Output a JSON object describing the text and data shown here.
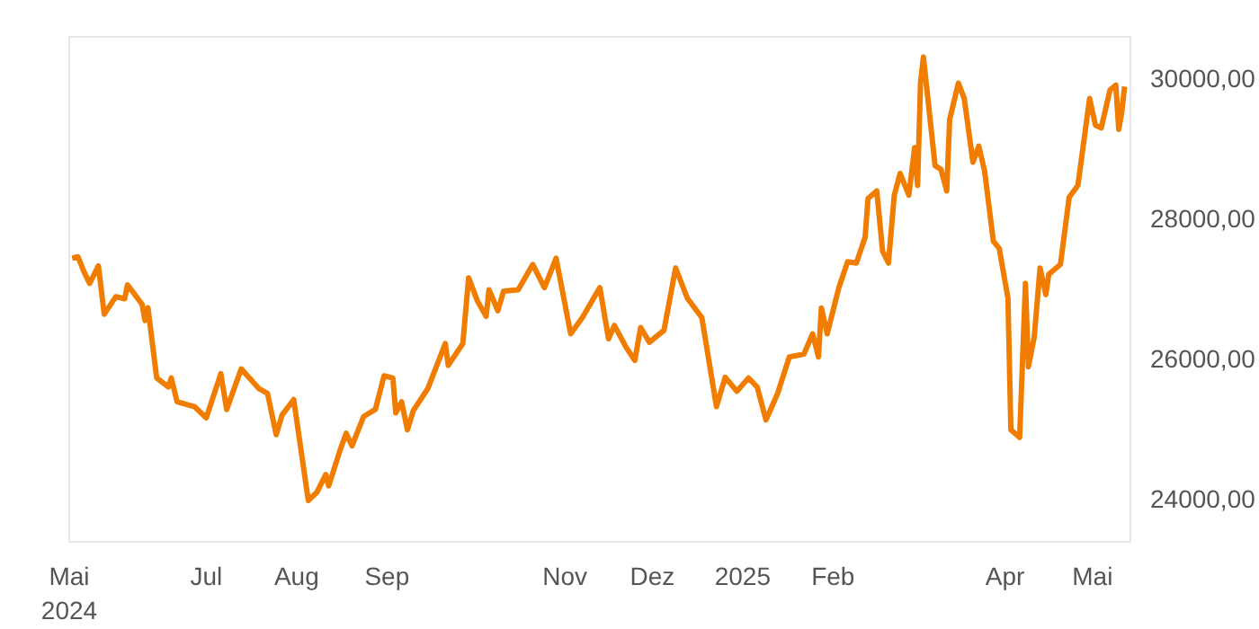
{
  "chart_data": {
    "type": "line",
    "x": [
      "2024-05-16",
      "2024-05-18",
      "2024-05-20",
      "2024-05-22",
      "2024-05-25",
      "2024-05-27",
      "2024-05-31",
      "2024-06-03",
      "2024-06-04",
      "2024-06-09",
      "2024-06-10",
      "2024-06-11",
      "2024-06-14",
      "2024-06-18",
      "2024-06-19",
      "2024-06-21",
      "2024-06-27",
      "2024-07-01",
      "2024-07-06",
      "2024-07-08",
      "2024-07-13",
      "2024-07-19",
      "2024-07-22",
      "2024-07-25",
      "2024-07-27",
      "2024-07-31",
      "2024-08-05",
      "2024-08-08",
      "2024-08-11",
      "2024-08-12",
      "2024-08-16",
      "2024-08-18",
      "2024-08-20",
      "2024-08-24",
      "2024-08-28",
      "2024-08-31",
      "2024-09-03",
      "2024-09-04",
      "2024-09-06",
      "2024-09-08",
      "2024-09-10",
      "2024-09-15",
      "2024-09-21",
      "2024-09-22",
      "2024-09-27",
      "2024-09-29",
      "2024-10-02",
      "2024-10-05",
      "2024-10-06",
      "2024-10-09",
      "2024-10-11",
      "2024-10-16",
      "2024-10-21",
      "2024-10-25",
      "2024-10-29",
      "2024-11-03",
      "2024-11-07",
      "2024-11-13",
      "2024-11-16",
      "2024-11-18",
      "2024-11-22",
      "2024-11-25",
      "2024-11-27",
      "2024-11-30",
      "2024-12-05",
      "2024-12-09",
      "2024-12-13",
      "2024-12-18",
      "2024-12-23",
      "2024-12-26",
      "2024-12-30",
      "2025-01-03",
      "2025-01-06",
      "2025-01-09",
      "2025-01-13",
      "2025-01-17",
      "2025-01-22",
      "2025-01-25",
      "2025-01-27",
      "2025-01-28",
      "2025-01-30",
      "2025-02-03",
      "2025-02-06",
      "2025-02-09",
      "2025-02-12",
      "2025-02-13",
      "2025-02-16",
      "2025-02-18",
      "2025-02-20",
      "2025-02-22",
      "2025-02-24",
      "2025-02-27",
      "2025-03-01",
      "2025-03-02",
      "2025-03-03",
      "2025-03-04",
      "2025-03-08",
      "2025-03-10",
      "2025-03-12",
      "2025-03-13",
      "2025-03-16",
      "2025-03-18",
      "2025-03-21",
      "2025-03-23",
      "2025-03-25",
      "2025-03-28",
      "2025-03-30",
      "2025-04-02",
      "2025-04-03",
      "2025-04-06",
      "2025-04-08",
      "2025-04-09",
      "2025-04-11",
      "2025-04-13",
      "2025-04-15",
      "2025-04-16",
      "2025-04-20",
      "2025-04-23",
      "2025-04-26",
      "2025-04-30",
      "2025-05-02",
      "2025-05-04",
      "2025-05-07",
      "2025-05-09",
      "2025-05-10",
      "2025-05-11",
      "2025-05-12"
    ],
    "series": [
      {
        "color": "#f07d00",
        "values": [
          27430,
          27450,
          27240,
          27070,
          27320,
          26630,
          26880,
          26850,
          27050,
          26770,
          26540,
          26720,
          25720,
          25590,
          25720,
          25380,
          25310,
          25150,
          25780,
          25270,
          25850,
          25570,
          25500,
          24910,
          25190,
          25410,
          23970,
          24090,
          24340,
          24180,
          24700,
          24930,
          24750,
          25170,
          25270,
          25750,
          25720,
          25220,
          25380,
          24980,
          25250,
          25570,
          26210,
          25900,
          26210,
          27150,
          26820,
          26600,
          26980,
          26680,
          26960,
          26980,
          27340,
          27010,
          27430,
          26350,
          26580,
          27010,
          26280,
          26470,
          26160,
          25970,
          26440,
          26230,
          26400,
          27290,
          26860,
          26580,
          25310,
          25730,
          25530,
          25720,
          25590,
          25120,
          25500,
          26020,
          26060,
          26350,
          26020,
          26720,
          26350,
          27010,
          27380,
          27360,
          27730,
          28280,
          28390,
          27530,
          27360,
          28330,
          28640,
          28330,
          29010,
          28470,
          29930,
          30300,
          28750,
          28700,
          28390,
          29410,
          29930,
          29710,
          28800,
          29030,
          28670,
          27670,
          27570,
          26860,
          24980,
          24870,
          27070,
          25880,
          26300,
          27290,
          26910,
          27200,
          27340,
          28300,
          28470,
          29710,
          29330,
          29290,
          29830,
          29900,
          29270,
          29500,
          29880
        ]
      }
    ],
    "xlim": [
      "2024-05-15",
      "2025-05-14"
    ],
    "xticks": [
      {
        "value": "2024-05-15",
        "label": "Mai\n2024"
      },
      {
        "value": "2024-07-01",
        "label": "Jul"
      },
      {
        "value": "2024-08-01",
        "label": "Aug"
      },
      {
        "value": "2024-09-01",
        "label": "Sep"
      },
      {
        "value": "2024-11-01",
        "label": "Nov"
      },
      {
        "value": "2024-12-01",
        "label": "Dez"
      },
      {
        "value": "2025-01-01",
        "label": "2025"
      },
      {
        "value": "2025-02-01",
        "label": "Feb"
      },
      {
        "value": "2025-04-01",
        "label": "Apr"
      },
      {
        "value": "2025-05-01",
        "label": "Mai"
      }
    ],
    "ylim": [
      23380,
      30590
    ],
    "yticks": [
      {
        "value": 24000,
        "label": "24000,00"
      },
      {
        "value": 26000,
        "label": "26000,00"
      },
      {
        "value": 28000,
        "label": "28000,00"
      },
      {
        "value": 30000,
        "label": "30000,00"
      }
    ],
    "line_style": "solid"
  }
}
